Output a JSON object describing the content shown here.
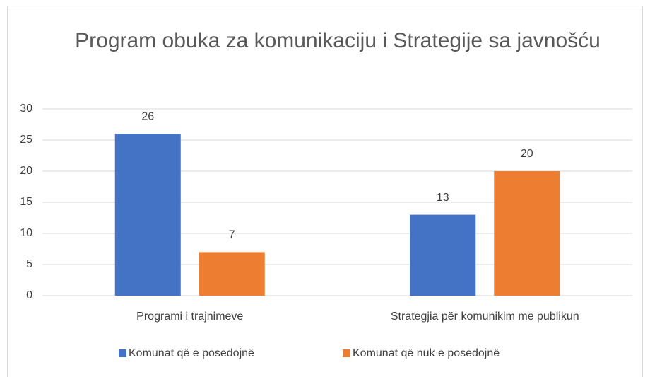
{
  "chart_data": {
    "type": "bar",
    "title": "Program obuka za komunikaciju i Strategije sa javnošću",
    "categories": [
      "Programi i trajnimeve",
      "Strategjia për komunikim me publikun"
    ],
    "series": [
      {
        "name": "Komunat që e posedojnë",
        "color": "#4472c4",
        "values": [
          26,
          13
        ]
      },
      {
        "name": "Komunat që nuk e posedojnë",
        "color": "#ed7d31",
        "values": [
          7,
          20
        ]
      }
    ],
    "ylim": [
      0,
      30
    ],
    "yticks": [
      0,
      5,
      10,
      15,
      20,
      25,
      30
    ],
    "grid": true,
    "legend": "bottom"
  }
}
